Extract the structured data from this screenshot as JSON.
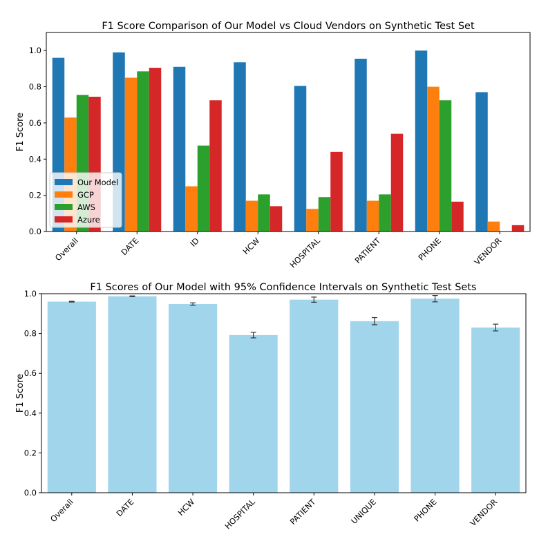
{
  "chart_data": [
    {
      "type": "bar",
      "title": "F1 Score Comparison of Our Model vs Cloud Vendors on Synthetic Test Set",
      "xlabel": "",
      "ylabel": "F1 Score",
      "ylim": [
        0,
        1.1
      ],
      "yticks": [
        0.0,
        0.2,
        0.4,
        0.6,
        0.8,
        1.0
      ],
      "ytick_labels": [
        "0.0",
        "0.2",
        "0.4",
        "0.6",
        "0.8",
        "1.0"
      ],
      "categories": [
        "Overall",
        "DATE",
        "ID",
        "HCW",
        "HOSPITAL",
        "PATIENT",
        "PHONE",
        "VENDOR"
      ],
      "legend_position": "lower-left",
      "series": [
        {
          "name": "Our Model",
          "color": "#1f77b4",
          "values": [
            0.96,
            0.99,
            0.91,
            0.935,
            0.805,
            0.955,
            1.0,
            0.77
          ]
        },
        {
          "name": "GCP",
          "color": "#ff7f0e",
          "values": [
            0.63,
            0.85,
            0.25,
            0.17,
            0.125,
            0.17,
            0.8,
            0.055
          ]
        },
        {
          "name": "AWS",
          "color": "#2ca02c",
          "values": [
            0.755,
            0.885,
            0.475,
            0.205,
            0.19,
            0.205,
            0.725,
            0.0
          ]
        },
        {
          "name": "Azure",
          "color": "#d62728",
          "values": [
            0.745,
            0.905,
            0.725,
            0.14,
            0.44,
            0.54,
            0.165,
            0.035
          ]
        }
      ]
    },
    {
      "type": "bar",
      "title": "F1 Scores of Our Model with 95% Confidence Intervals on Synthetic Test Sets",
      "xlabel": "",
      "ylabel": "F1 Score",
      "ylim": [
        0,
        1.0
      ],
      "yticks": [
        0.0,
        0.2,
        0.4,
        0.6,
        0.8,
        1.0
      ],
      "ytick_labels": [
        "0.0",
        "0.2",
        "0.4",
        "0.6",
        "0.8",
        "1.0"
      ],
      "categories": [
        "Overall",
        "DATE",
        "HCW",
        "HOSPITAL",
        "PATIENT",
        "UNIQUE",
        "PHONE",
        "VENDOR"
      ],
      "bar_color": "#a0d5ec",
      "series": [
        {
          "name": "Our Model",
          "values": [
            0.96,
            0.987,
            0.948,
            0.792,
            0.97,
            0.862,
            0.975,
            0.83
          ],
          "ci_half_width": [
            0.002,
            0.002,
            0.006,
            0.014,
            0.013,
            0.018,
            0.016,
            0.017
          ]
        }
      ]
    }
  ]
}
